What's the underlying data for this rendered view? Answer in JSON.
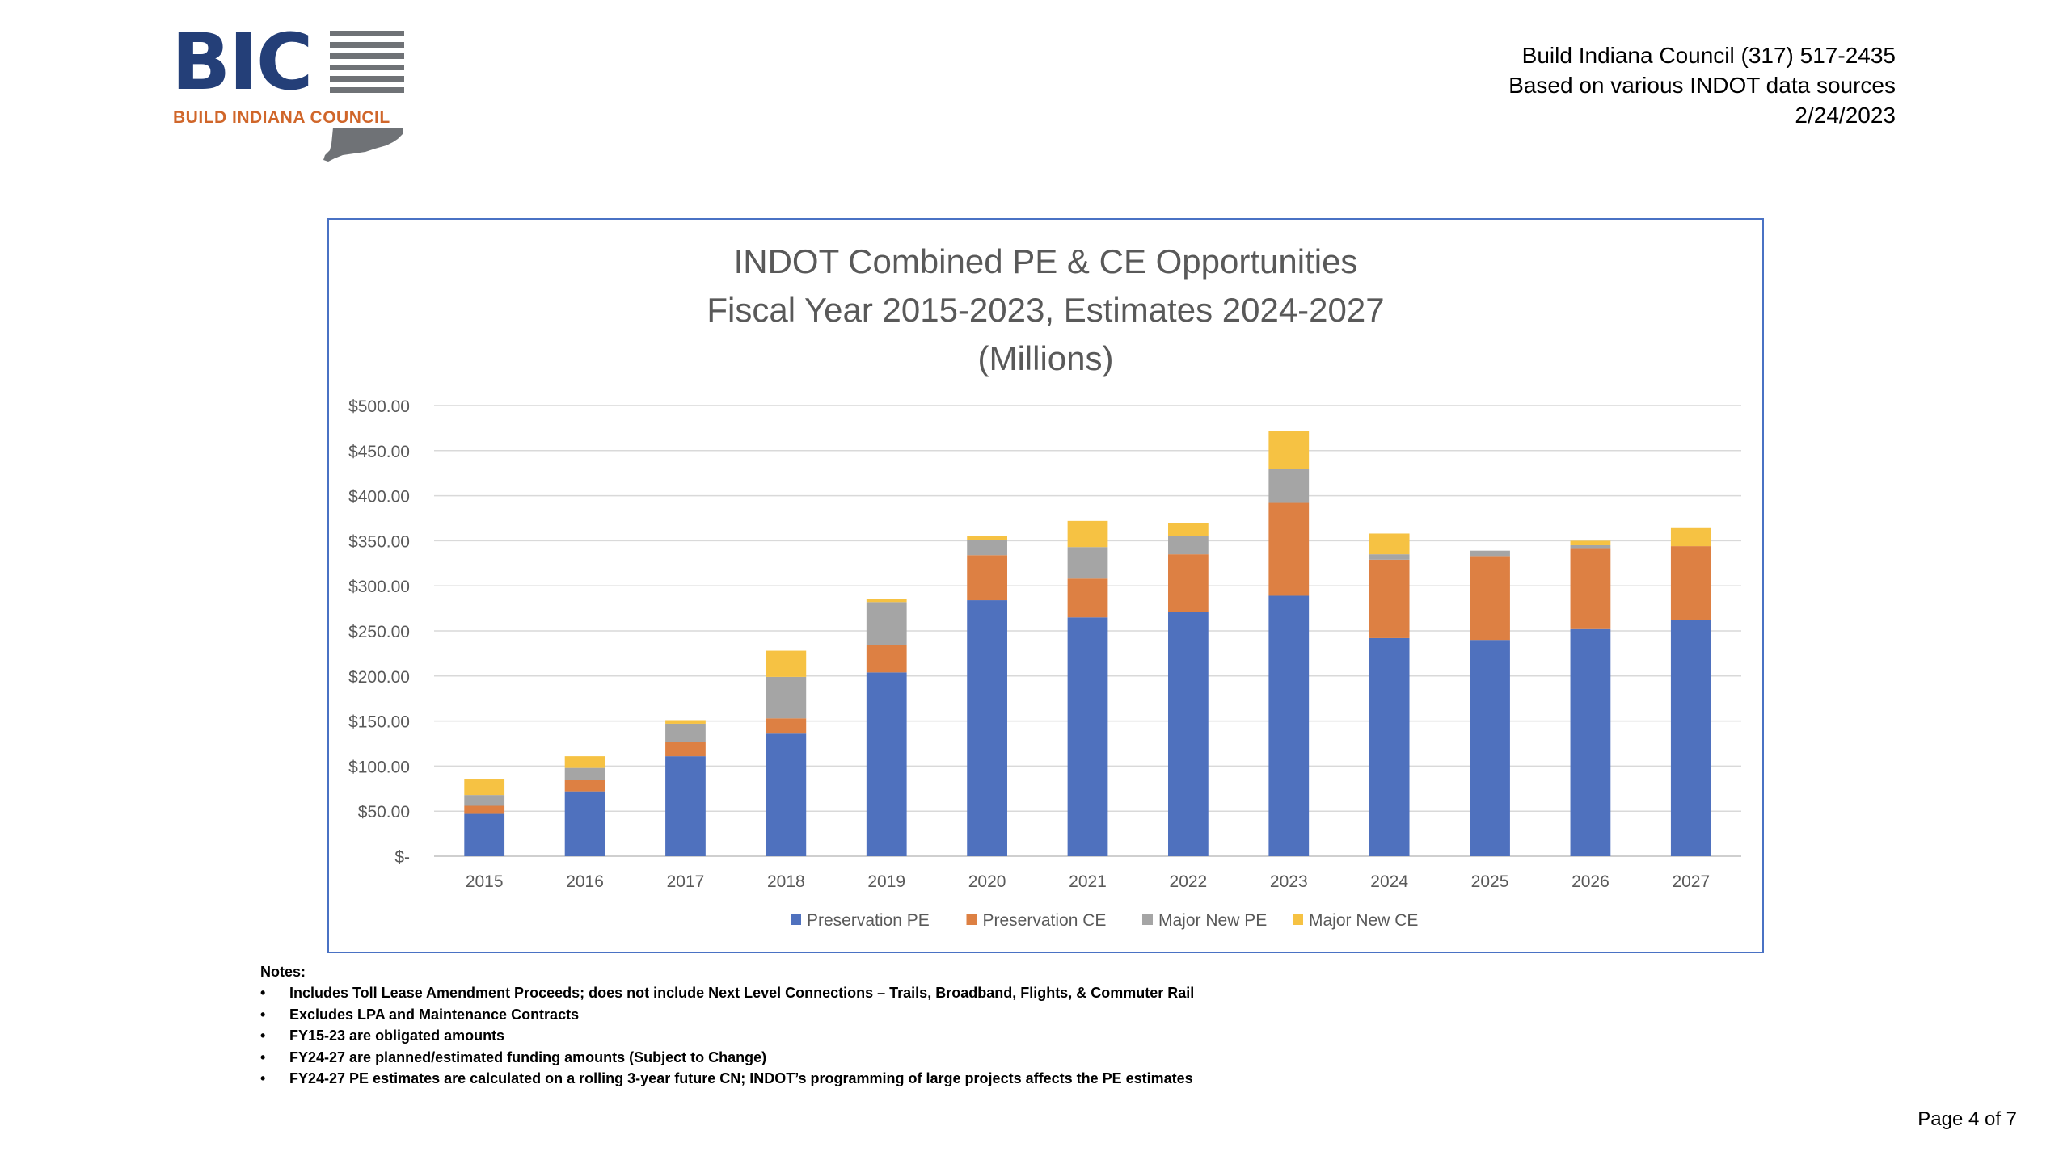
{
  "logo": {
    "mark": "BIC",
    "subtitle": "BUILD INDIANA COUNCIL",
    "icon": "indiana-state-outline-icon"
  },
  "header": {
    "contact": "Build Indiana Council (317) 517-2435",
    "source": "Based on various INDOT data sources",
    "date": "2/24/2023"
  },
  "chart_data": {
    "type": "bar",
    "stacked": true,
    "title_lines": [
      "INDOT Combined PE & CE Opportunities",
      "Fiscal Year 2015-2023, Estimates 2024-2027",
      "(Millions)"
    ],
    "xlabel": "",
    "ylabel": "",
    "ylim": [
      0,
      500
    ],
    "y_ticks": [
      0,
      50,
      100,
      150,
      200,
      250,
      300,
      350,
      400,
      450,
      500
    ],
    "y_tick_labels": [
      "$-",
      "$50.00",
      "$100.00",
      "$150.00",
      "$200.00",
      "$250.00",
      "$300.00",
      "$350.00",
      "$400.00",
      "$450.00",
      "$500.00"
    ],
    "grid": true,
    "legend_position": "bottom",
    "categories": [
      "2015",
      "2016",
      "2017",
      "2018",
      "2019",
      "2020",
      "2021",
      "2022",
      "2023",
      "2024",
      "2025",
      "2026",
      "2027"
    ],
    "series": [
      {
        "name": "Preservation PE",
        "color": "#4f71be",
        "values": [
          47,
          72,
          111,
          136,
          204,
          284,
          265,
          271,
          289,
          242,
          240,
          252,
          262
        ]
      },
      {
        "name": "Preservation CE",
        "color": "#dd8043",
        "values": [
          9,
          13,
          16,
          17,
          30,
          50,
          43,
          64,
          103,
          87,
          93,
          89,
          82
        ]
      },
      {
        "name": "Major New PE",
        "color": "#a5a5a5",
        "values": [
          12,
          13,
          20,
          46,
          48,
          17,
          35,
          20,
          38,
          6,
          6,
          4,
          0
        ]
      },
      {
        "name": "Major New CE",
        "color": "#f6c243",
        "values": [
          18,
          13,
          4,
          29,
          3,
          4,
          29,
          15,
          42,
          23,
          0,
          5,
          20
        ]
      }
    ]
  },
  "notes": {
    "label": "Notes:",
    "items": [
      "Includes Toll Lease Amendment Proceeds; does not include Next Level Connections – Trails, Broadband, Flights, & Commuter Rail",
      "Excludes LPA and Maintenance Contracts",
      "FY15-23 are obligated amounts",
      "FY24-27 are planned/estimated funding amounts (Subject to Change)",
      "FY24-27 PE estimates are calculated on a rolling 3-year future CN;  INDOT’s programming of large projects affects the PE estimates"
    ]
  },
  "footer": {
    "page": "Page 4 of 7"
  }
}
